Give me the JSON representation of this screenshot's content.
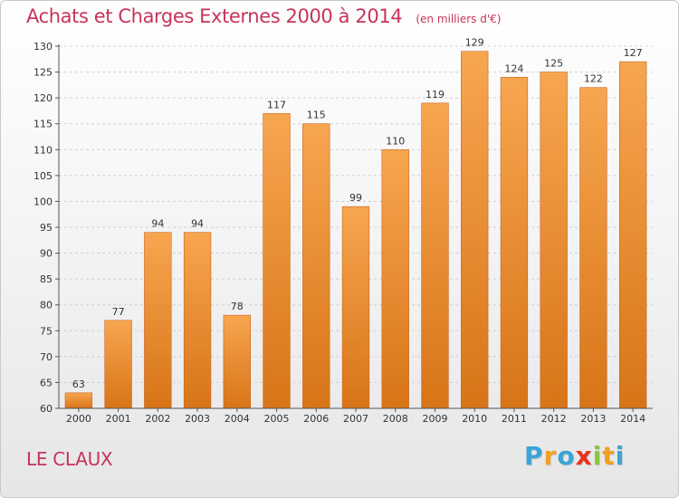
{
  "header": {
    "title": "Achats et Charges Externes 2000 à 2014",
    "unit": "(en milliers d'€)"
  },
  "footer": {
    "commune": "LE CLAUX",
    "logo_letters": [
      "P",
      "r",
      "o",
      "x",
      "i",
      "t",
      "i"
    ],
    "logo_colors": [
      "#3aa5d8",
      "#f0a020",
      "#3aa5d8",
      "#e8341c",
      "#8cc63e",
      "#f0a020",
      "#3aa5d8"
    ]
  },
  "colors": {
    "title": "#c8325a",
    "bar_light": "#f7a650",
    "bar_dark": "#d87418",
    "grid": "#cfcfcf"
  },
  "chart_data": {
    "type": "bar",
    "title": "Achats et Charges Externes 2000 à 2014",
    "subtitle": "(en milliers d'€)",
    "xlabel": "",
    "ylabel": "",
    "categories": [
      "2000",
      "2001",
      "2002",
      "2003",
      "2004",
      "2005",
      "2006",
      "2007",
      "2008",
      "2009",
      "2010",
      "2011",
      "2012",
      "2013",
      "2014"
    ],
    "values": [
      63,
      77,
      94,
      94,
      78,
      117,
      115,
      99,
      110,
      119,
      129,
      124,
      125,
      122,
      127
    ],
    "ylim": [
      60,
      130
    ],
    "yticks": [
      60,
      65,
      70,
      75,
      80,
      85,
      90,
      95,
      100,
      105,
      110,
      115,
      120,
      125,
      130
    ],
    "grid": true,
    "data_labels": true
  }
}
